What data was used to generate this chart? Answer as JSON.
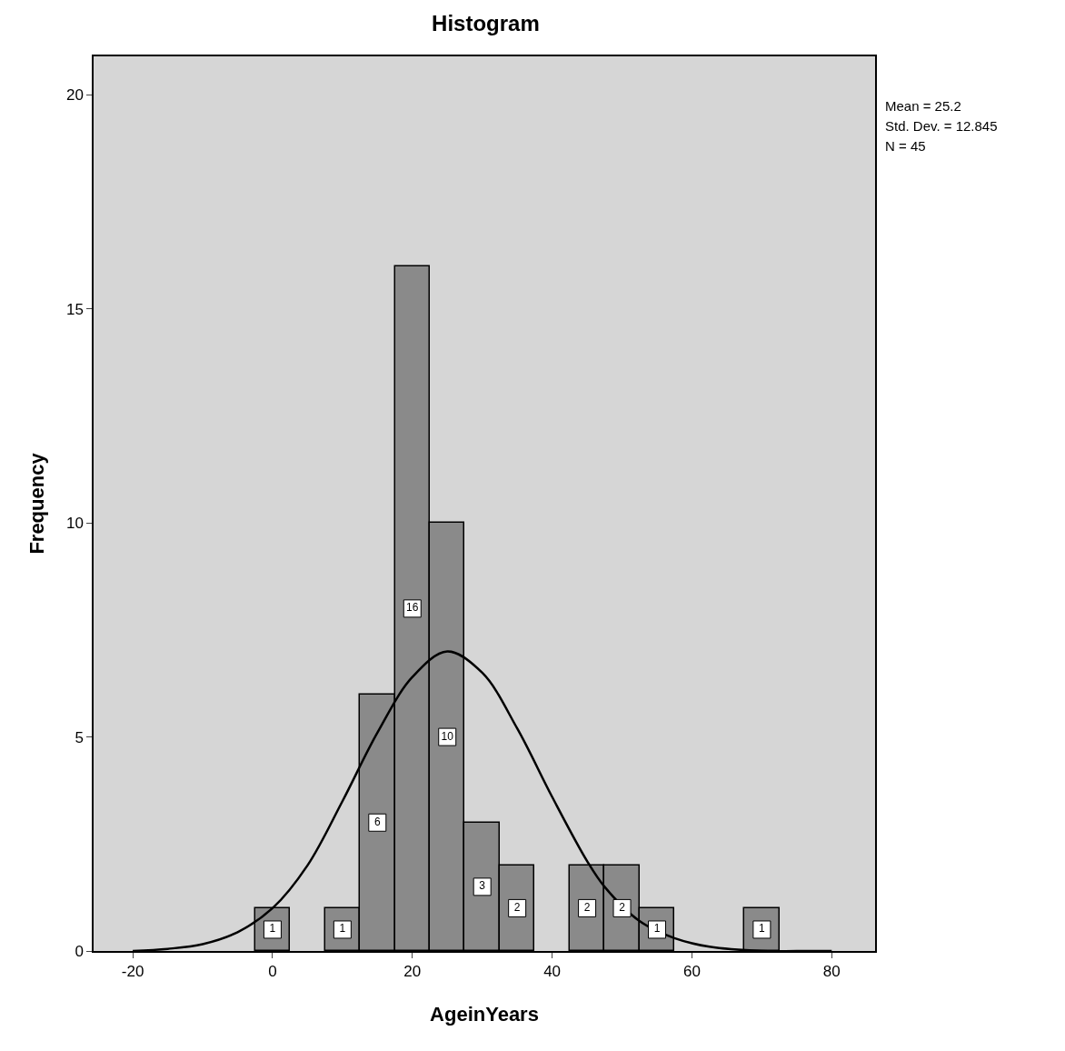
{
  "chart_data": {
    "type": "histogram",
    "title": "Histogram",
    "xlabel": "AgeinYears",
    "ylabel": "Frequency",
    "bins": [
      -2.5,
      2.5,
      7.5,
      12.5,
      17.5,
      22.5,
      27.5,
      32.5,
      37.5,
      42.5,
      47.5,
      52.5,
      57.5,
      62.5,
      67.5,
      72.5
    ],
    "series": [
      {
        "color": "#8a8a8a",
        "values": [
          1,
          0,
          1,
          6,
          16,
          10,
          3,
          2,
          0,
          2,
          2,
          1,
          0,
          0,
          1
        ],
        "value_labels": [
          "1",
          null,
          "1",
          "6",
          "16",
          "10",
          "3",
          "2",
          null,
          "2",
          "2",
          "1",
          null,
          null,
          "1"
        ]
      },
      {
        "type": "line",
        "color": "#000000",
        "x": [
          -20,
          -15,
          -10,
          -5,
          0,
          5,
          10,
          15,
          20,
          25,
          30,
          35,
          40,
          45,
          47.5,
          52.5,
          57.5,
          62.5,
          70,
          75,
          80
        ],
        "values": [
          0,
          0.05,
          0.16,
          0.44,
          1.0,
          2.0,
          3.5,
          5.1,
          6.4,
          7.0,
          6.5,
          5.2,
          3.6,
          2.1,
          1.5,
          0.7,
          0.3,
          0.1,
          0,
          0,
          0
        ]
      }
    ],
    "xlim": [
      -25.6,
      86.2
    ],
    "ylim": [
      0,
      20.9
    ],
    "xticks": [
      -20,
      0,
      20,
      40,
      60,
      80
    ],
    "yticks": [
      0,
      5,
      10,
      15,
      20
    ],
    "grid": false,
    "legend": false,
    "marker": "none",
    "line_style": "solid",
    "annotations": [
      "Mean = 25.2",
      "Std. Dev. = 12.845",
      "N = 45"
    ]
  }
}
